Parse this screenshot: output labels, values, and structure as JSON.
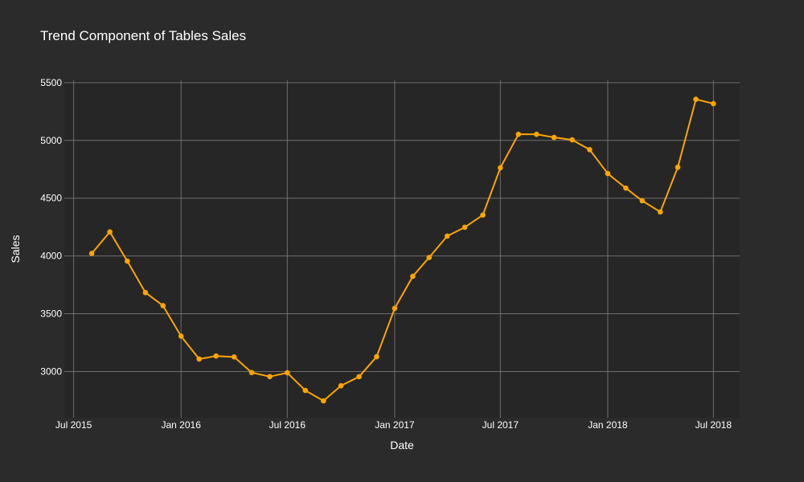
{
  "chart_data": {
    "type": "line",
    "title": "Trend Component of Tables Sales",
    "xlabel": "Date",
    "ylabel": "Sales",
    "xlim": [
      "2015-06-15",
      "2018-08-15"
    ],
    "ylim": [
      2600,
      5520
    ],
    "x_ticks": [
      "Jul 2015",
      "Jan 2016",
      "Jul 2016",
      "Jan 2017",
      "Jul 2017",
      "Jan 2018",
      "Jul 2018"
    ],
    "x_tick_dates": [
      "2015-07-01",
      "2016-01-01",
      "2016-07-01",
      "2017-01-01",
      "2017-07-01",
      "2018-01-01",
      "2018-07-01"
    ],
    "y_ticks": [
      3000,
      3500,
      4000,
      4500,
      5000,
      5500
    ],
    "grid": true,
    "legend": false,
    "colors": {
      "background": "#2b2b2b",
      "plot_background": "#262626",
      "grid": "#6e6e6e",
      "line": "#ffa500",
      "text": "#ffffff"
    },
    "series": [
      {
        "x": [
          "2015-08-01",
          "2015-09-01",
          "2015-10-01",
          "2015-11-01",
          "2015-12-01",
          "2016-01-01",
          "2016-02-01",
          "2016-03-01",
          "2016-04-01",
          "2016-05-01",
          "2016-06-01",
          "2016-07-01",
          "2016-08-01",
          "2016-09-01",
          "2016-10-01",
          "2016-11-01",
          "2016-12-01",
          "2017-01-01",
          "2017-02-01",
          "2017-03-01",
          "2017-04-01",
          "2017-05-01",
          "2017-06-01",
          "2017-07-01",
          "2017-08-01",
          "2017-09-01",
          "2017-10-01",
          "2017-11-01",
          "2017-12-01",
          "2018-01-01",
          "2018-02-01",
          "2018-03-01",
          "2018-04-01",
          "2018-05-01",
          "2018-06-01",
          "2018-07-01"
        ],
        "y": [
          4022,
          4208,
          3955,
          3683,
          3570,
          3306,
          3108,
          3134,
          3126,
          2991,
          2956,
          2989,
          2836,
          2746,
          2877,
          2955,
          3128,
          3547,
          3824,
          3987,
          4172,
          4248,
          4354,
          4763,
          5053,
          5053,
          5026,
          5005,
          4920,
          4713,
          4587,
          4478,
          4381,
          4768,
          5356,
          5318
        ]
      }
    ]
  }
}
